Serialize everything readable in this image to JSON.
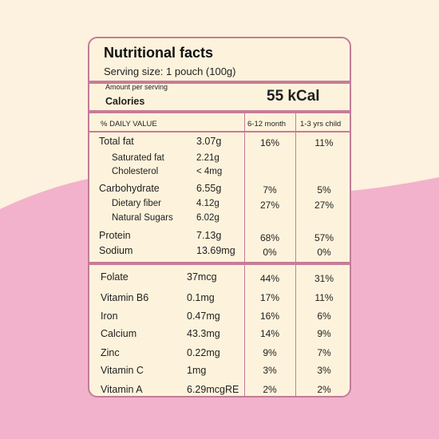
{
  "panel": {
    "title": "Nutritional facts",
    "serving": "Serving size: 1 pouch (100g)",
    "amount_per_serving": "Amount per serving",
    "calories_label": "Calories",
    "calories_value": "55 kCal",
    "col_daily": "% DAILY VALUE",
    "col_infant": "6-12 month",
    "col_child": "1-3 yrs child"
  },
  "nutrients": [
    {
      "name": "Total fat",
      "amount": "3.07g",
      "infant": "16%",
      "child": "11%"
    },
    {
      "name": "Saturated fat",
      "amount": "2.21g",
      "infant": "",
      "child": ""
    },
    {
      "name": "Cholesterol",
      "amount": "< 4mg",
      "infant": "",
      "child": ""
    },
    {
      "name": "Carbohydrate",
      "amount": "6.55g",
      "infant": "7%",
      "child": "5%"
    },
    {
      "name": "Dietary fiber",
      "amount": "4.12g",
      "infant": "27%",
      "child": "27%"
    },
    {
      "name": "Natural Sugars",
      "amount": "6.02g",
      "infant": "",
      "child": ""
    },
    {
      "name": "Protein",
      "amount": "7.13g",
      "infant": "68%",
      "child": "57%"
    },
    {
      "name": "Sodium",
      "amount": "13.69mg",
      "infant": "0%",
      "child": "0%"
    }
  ],
  "micronutrients": [
    {
      "name": "Folate",
      "amount": "37mcg",
      "infant": "44%",
      "child": "31%"
    },
    {
      "name": "Vitamin B6",
      "amount": "0.1mg",
      "infant": "17%",
      "child": "11%"
    },
    {
      "name": "Iron",
      "amount": "0.47mg",
      "infant": "16%",
      "child": "6%"
    },
    {
      "name": "Calcium",
      "amount": "43.3mg",
      "infant": "14%",
      "child": "9%"
    },
    {
      "name": "Zinc",
      "amount": "0.22mg",
      "infant": "9%",
      "child": "7%"
    },
    {
      "name": "Vitamin C",
      "amount": "1mg",
      "infant": "3%",
      "child": "3%"
    },
    {
      "name": "Vitamin A",
      "amount": "6.29mcgRE",
      "infant": "2%",
      "child": "2%"
    }
  ],
  "colors": {
    "background_cream": "#fdf1e0",
    "background_pink": "#f2b2cb",
    "accent": "#c77c98",
    "panel": "#fdf3dc"
  }
}
